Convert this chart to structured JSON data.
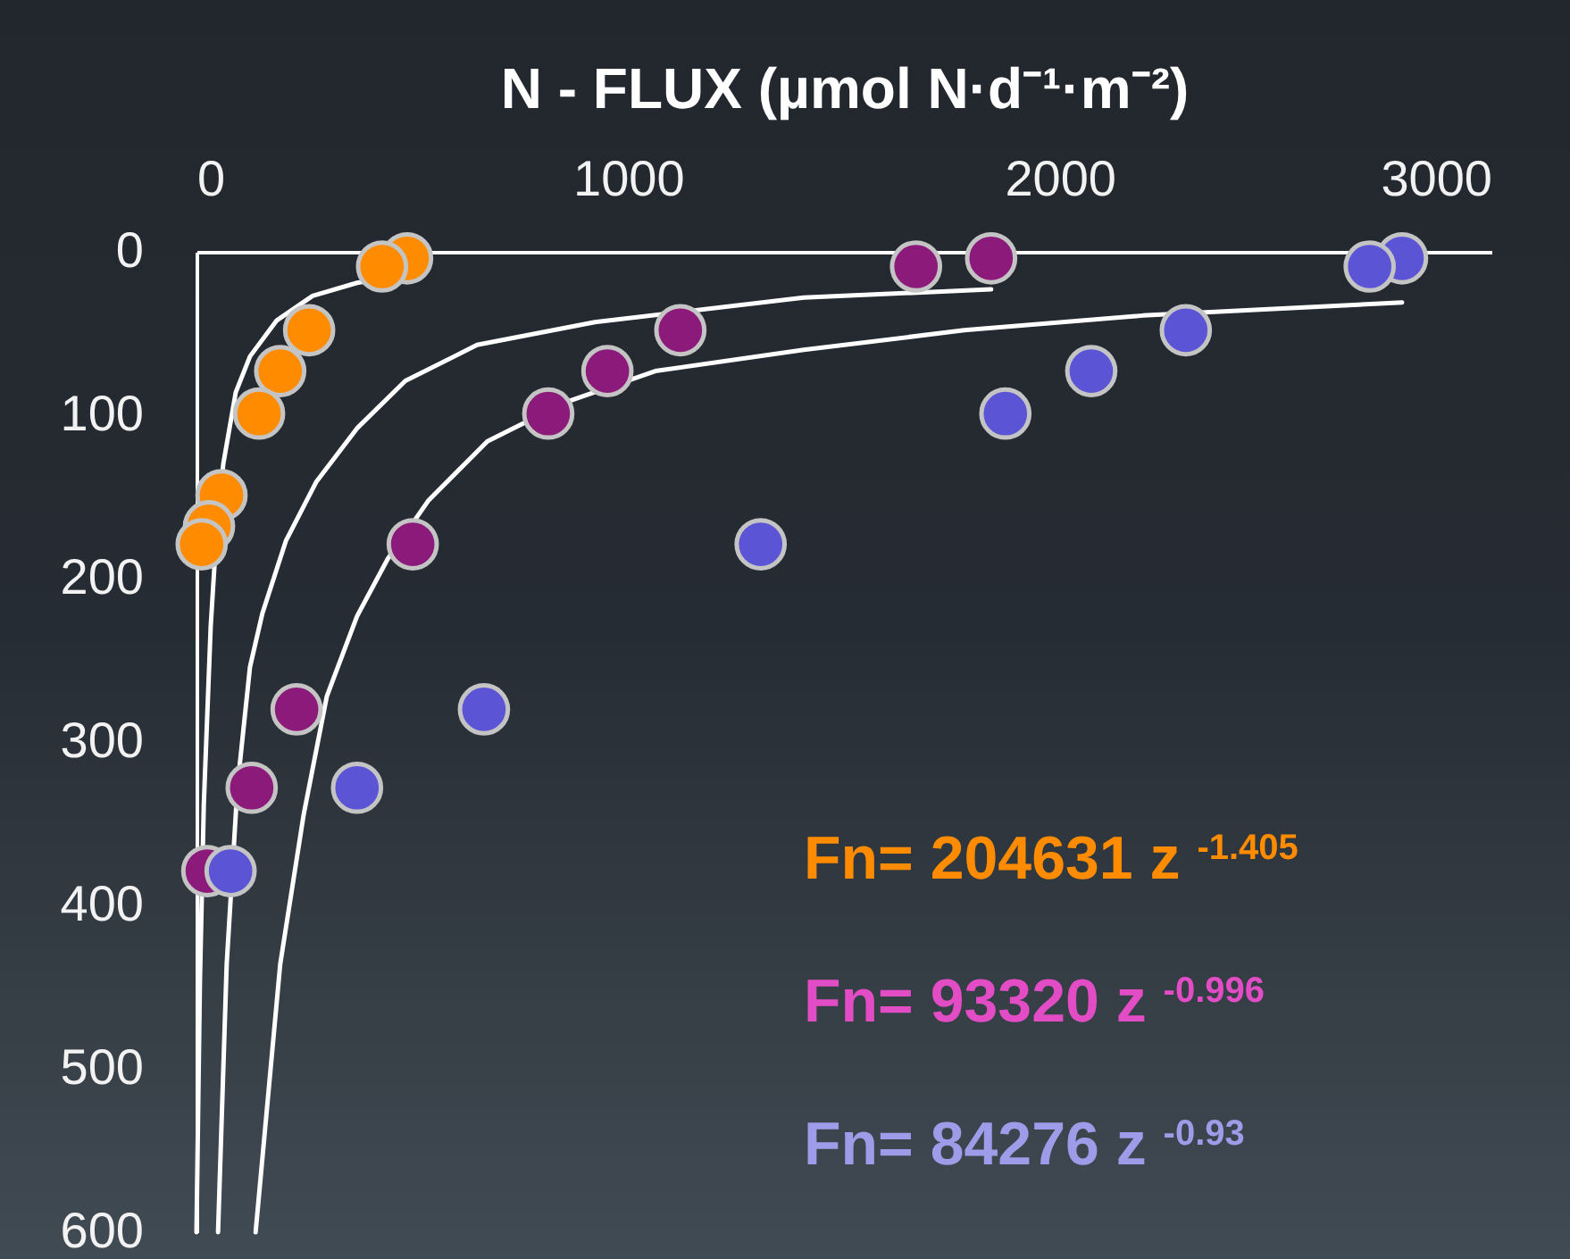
{
  "chart_data": {
    "type": "scatter",
    "xlabel": "N - FLUX  (µmol N·d⁻¹·m⁻²)",
    "xlim": [
      0,
      3000
    ],
    "xticks": [
      0,
      1000,
      2000,
      3000
    ],
    "ylim": [
      600,
      0
    ],
    "yticks": [
      0,
      100,
      200,
      300,
      400,
      500,
      600
    ],
    "grid": false,
    "legend": false,
    "marker": "circle",
    "series": [
      {
        "color": "#ff8c00",
        "x": [
          488,
          430,
          261,
          194,
          145,
          58,
          29,
          12
        ],
        "values": [
          4,
          9,
          48,
          73,
          99,
          149,
          168,
          179
        ]
      },
      {
        "color": "#8b1a7a",
        "x": [
          1841,
          1667,
          1121,
          952,
          815,
          501,
          232,
          128,
          25
        ],
        "values": [
          4,
          9,
          48,
          73,
          99,
          179,
          280,
          328,
          379
        ]
      },
      {
        "color": "#5b55d6",
        "x": [
          2793,
          2718,
          2292,
          2073,
          1874,
          1307,
          666,
          372,
          79
        ],
        "values": [
          4,
          9,
          48,
          73,
          99,
          179,
          280,
          328,
          379
        ]
      },
      {
        "type": "line",
        "color": "#ffffff",
        "marker": "none",
        "x": [
          484,
          372,
          269,
          186,
          124,
          91,
          62,
          46,
          33,
          17,
          8,
          0
        ],
        "values": [
          14,
          19,
          27,
          42,
          64,
          86,
          130,
          174,
          229,
          338,
          447,
          600
        ]
      },
      {
        "type": "line",
        "color": "#ffffff",
        "marker": "none",
        "x": [
          1841,
          1407,
          923,
          650,
          484,
          372,
          277,
          207,
          153,
          124,
          95,
          70,
          50
        ],
        "values": [
          23,
          28,
          43,
          57,
          79,
          108,
          141,
          177,
          221,
          254,
          327,
          436,
          600
        ]
      },
      {
        "type": "line",
        "color": "#ffffff",
        "marker": "none",
        "x": [
          2793,
          2193,
          1779,
          1407,
          1063,
          856,
          674,
          538,
          443,
          372,
          302,
          248,
          194,
          137
        ],
        "values": [
          31,
          39,
          48,
          60,
          73,
          92,
          116,
          152,
          188,
          223,
          272,
          345,
          436,
          600
        ]
      }
    ],
    "annotations": [
      "Fn= 204631 z $^{-1.405}$",
      "Fn= 93320 z $^{-0.996}$",
      "Fn= 84276 z $^{-0.93}$"
    ]
  }
}
